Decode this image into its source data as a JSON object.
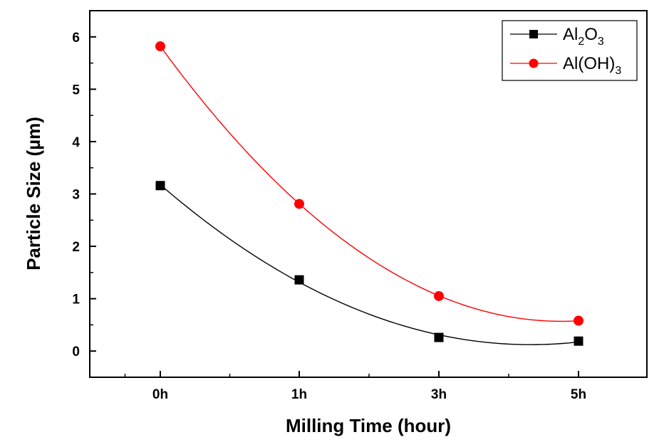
{
  "chart_data": {
    "type": "scatter",
    "title": "",
    "xlabel": "Milling Time (hour)",
    "ylabel": "Particle Size (µm)",
    "categories": [
      "0h",
      "1h",
      "3h",
      "5h"
    ],
    "ylim": [
      -0.5,
      6.5
    ],
    "yticks": [
      "0",
      "1",
      "2",
      "3",
      "4",
      "5",
      "6"
    ],
    "legend_position": "top-right",
    "grid": false,
    "series": [
      {
        "name": "Al2O3",
        "legend_base": "Al",
        "legend_sub1": "2",
        "legend_mid": "O",
        "legend_sub2": "3",
        "marker": "square",
        "color": "#000000",
        "values": [
          3.16,
          1.36,
          0.26,
          0.19
        ]
      },
      {
        "name": "Al(OH)3",
        "legend_base": "Al(OH)",
        "legend_sub1": "3",
        "marker": "circle",
        "color": "#ff0000",
        "values": [
          5.82,
          2.81,
          1.05,
          0.58
        ]
      }
    ]
  }
}
